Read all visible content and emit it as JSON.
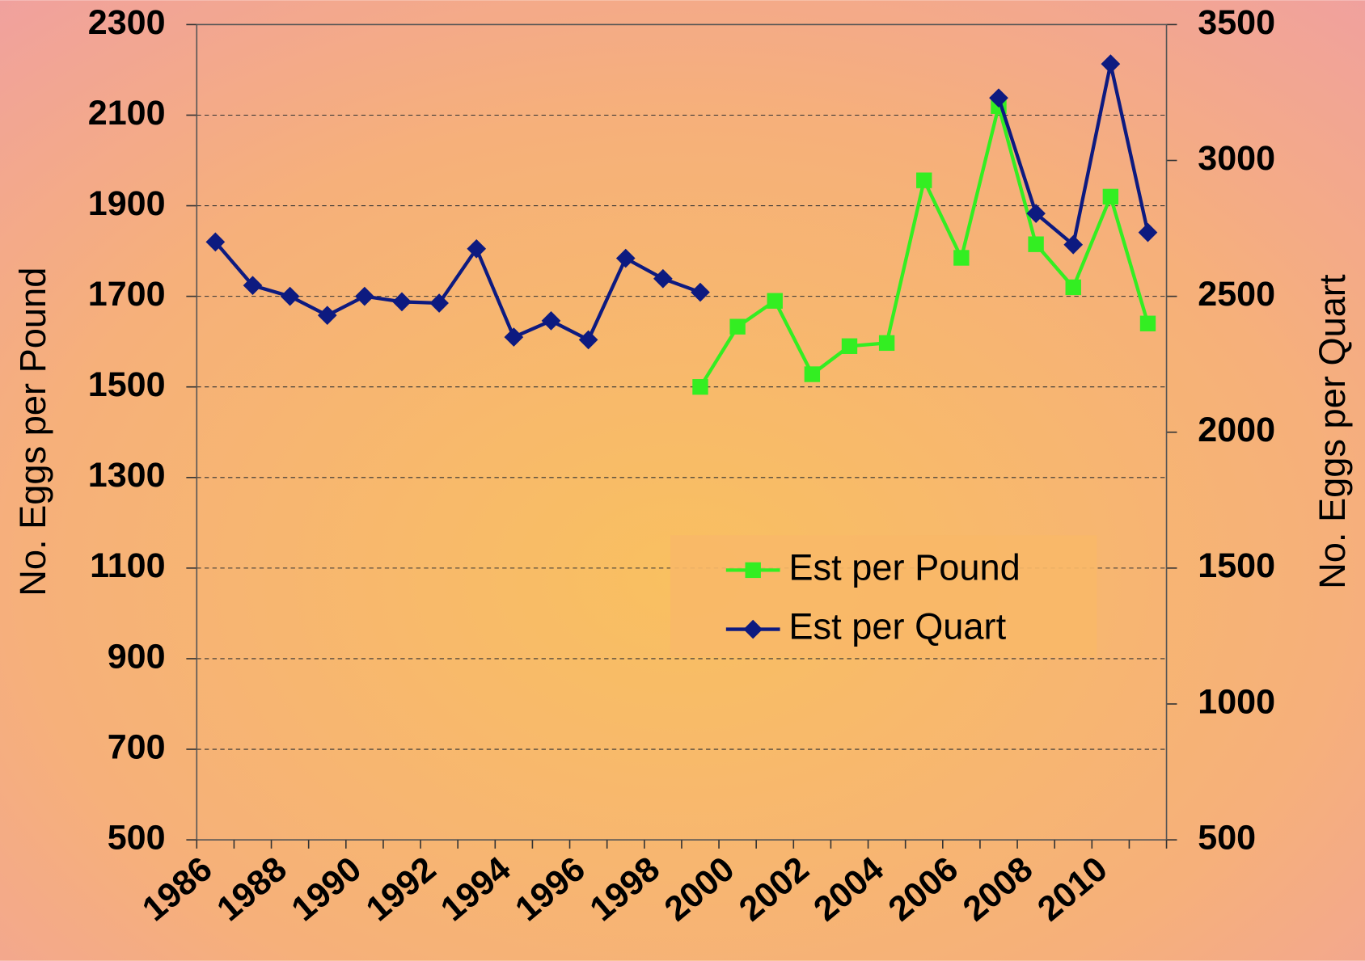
{
  "chart_data": {
    "type": "line",
    "y_label": "No. Eggs per Pound",
    "y2_label": "No. Eggs per Quart",
    "categories": [
      "1986",
      null,
      "1988",
      null,
      "1990",
      null,
      "1992",
      null,
      "1994",
      null,
      "1996",
      null,
      "1998",
      null,
      "2000",
      null,
      "2002",
      null,
      "2004",
      null,
      "2006",
      null,
      "2008",
      null,
      "2010",
      null
    ],
    "series": [
      {
        "name": "Est per Pound",
        "color": "#33ee22",
        "marker": "square",
        "values": [
          null,
          null,
          null,
          null,
          null,
          null,
          null,
          null,
          null,
          null,
          null,
          null,
          null,
          1500,
          1633,
          1690,
          1528,
          1590,
          1597,
          1956,
          1785,
          2120,
          1815,
          1720,
          1920,
          1640
        ]
      },
      {
        "name": "Est per Quart",
        "color": "#0d1a80",
        "marker": "diamond",
        "axis": "y2",
        "values": [
          2700,
          2540,
          2500,
          2430,
          2500,
          2480,
          2475,
          2675,
          2350,
          2410,
          2340,
          2640,
          2565,
          2515,
          null,
          null,
          null,
          null,
          null,
          null,
          null,
          3230,
          2805,
          2690,
          3355,
          2735
        ]
      }
    ],
    "ylim": [
      500,
      2300
    ],
    "yticks": [
      500,
      700,
      900,
      1100,
      1300,
      1500,
      1700,
      1900,
      2100,
      2300
    ],
    "y2lim": [
      500,
      3500
    ],
    "y2ticks": [
      500,
      1000,
      1500,
      2000,
      2500,
      3000,
      3500
    ],
    "grid": true
  }
}
